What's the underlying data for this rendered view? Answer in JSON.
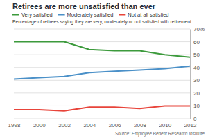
{
  "chart_data": {
    "type": "line",
    "title": "Retirees are more unsatisfied than ever",
    "subtitle": "Percentage of retirees saying they are very, moderately or not satisfied with retirement",
    "annotations": [
      "Source: Employee Benefit Research Institute"
    ],
    "x": [
      1998,
      2000,
      2002,
      2004,
      2006,
      2008,
      2010,
      2012
    ],
    "series": [
      {
        "name": "Very satisfied",
        "color": "#3c9a3c",
        "values": [
          60,
          60,
          60,
          54,
          53,
          53,
          50,
          48
        ]
      },
      {
        "name": "Moderately satisfied",
        "color": "#4a90c8",
        "values": [
          31,
          32,
          33,
          36,
          37,
          38,
          39,
          41
        ]
      },
      {
        "name": "Not at all satisfied",
        "color": "#e8443a",
        "values": [
          7,
          7,
          6,
          9,
          9,
          8,
          10,
          10
        ]
      }
    ],
    "xlim": [
      1998,
      2012
    ],
    "xticks": [
      1998,
      2000,
      2002,
      2004,
      2006,
      2008,
      2010,
      2012
    ],
    "ylim": [
      0,
      70
    ],
    "yticks": [
      0,
      10,
      20,
      30,
      40,
      50,
      60,
      {
        "value": 70,
        "label": "70%"
      }
    ],
    "grid": true,
    "legend": "top"
  }
}
